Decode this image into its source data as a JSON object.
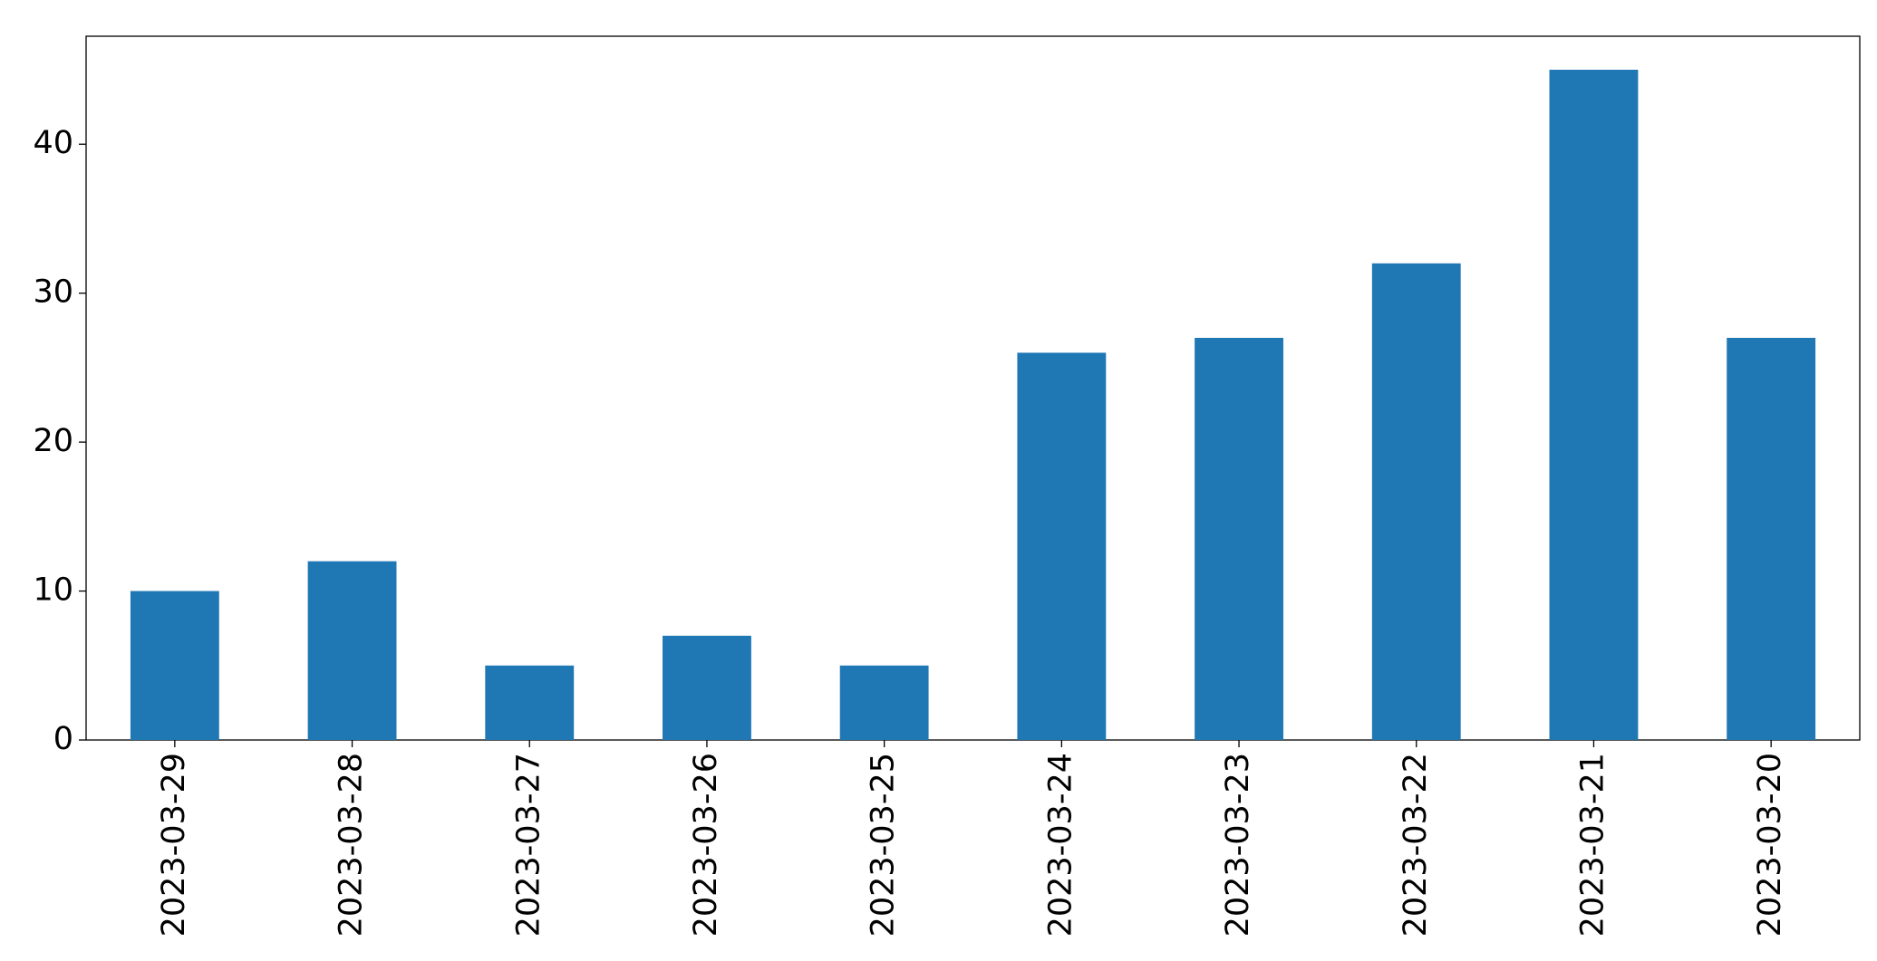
{
  "chart_data": {
    "type": "bar",
    "categories": [
      "2023-03-29",
      "2023-03-28",
      "2023-03-27",
      "2023-03-26",
      "2023-03-25",
      "2023-03-24",
      "2023-03-23",
      "2023-03-22",
      "2023-03-21",
      "2023-03-20"
    ],
    "values": [
      10,
      12,
      5,
      7,
      5,
      26,
      27,
      32,
      45,
      27
    ],
    "color": "#1f77b4",
    "ylim": [
      0,
      47.25
    ],
    "yticks": [
      0,
      10,
      20,
      30,
      40
    ],
    "grid": false
  }
}
